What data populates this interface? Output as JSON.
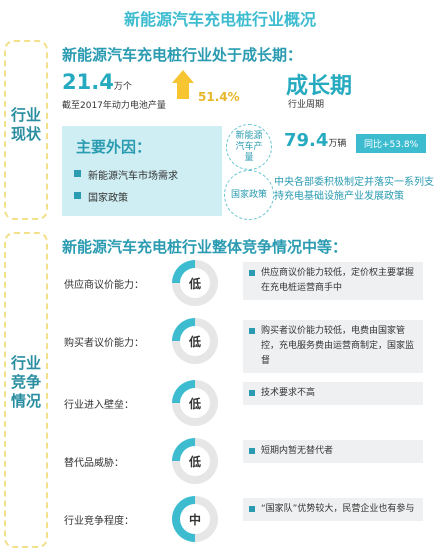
{
  "page_title": "新能源汽车充电桩行业概况",
  "status": {
    "side_label": "行业现状",
    "heading": "新能源汽车充电桩行业处于成长期：",
    "battery_value": "21.4",
    "battery_unit": "万个",
    "battery_caption": "截至2017年动力电池产量",
    "growth_pct": "51.4%",
    "stage": "成长期",
    "stage_caption": "行业周期",
    "reasons_title": "主要外因：",
    "reasons": [
      "新能源汽车市场需求",
      "国家政策"
    ],
    "ev_production_label": "新能源汽车产量",
    "ev_production_value": "79.4",
    "ev_production_unit": "万辆",
    "yoy": "同比+53.8%",
    "policy_label": "国家政策",
    "policy_text": "中央各部委积极制定并落实一系列支持充电基础设施产业发展政策"
  },
  "competition": {
    "side_label": "行业竞争情况",
    "heading": "新能源汽车充电桩行业整体竞争情况中等：",
    "rows": [
      {
        "label": "供应商议价能力：",
        "level": "低",
        "desc": "供应商议价能力较低，定价权主要掌握在充电桩运营商手中",
        "fill": 0.25
      },
      {
        "label": "购买者议价能力：",
        "level": "低",
        "desc": "购买者议价能力较低，电费由国家管控，充电服务费由运营商制定，国家监督",
        "fill": 0.25
      },
      {
        "label": "行业进入壁垒：",
        "level": "低",
        "desc": "技术要求不高",
        "fill": 0.25
      },
      {
        "label": "替代品威胁：",
        "level": "低",
        "desc": "短期内暂无替代者",
        "fill": 0.25
      },
      {
        "label": "行业竞争程度：",
        "level": "中",
        "desc": "“国家队”优势较大，民营企业也有参与",
        "fill": 0.5
      }
    ]
  },
  "colors": {
    "accent": "#3dbcd0",
    "donut_track": "#e6e6e6",
    "arrow": "#f6c531"
  }
}
